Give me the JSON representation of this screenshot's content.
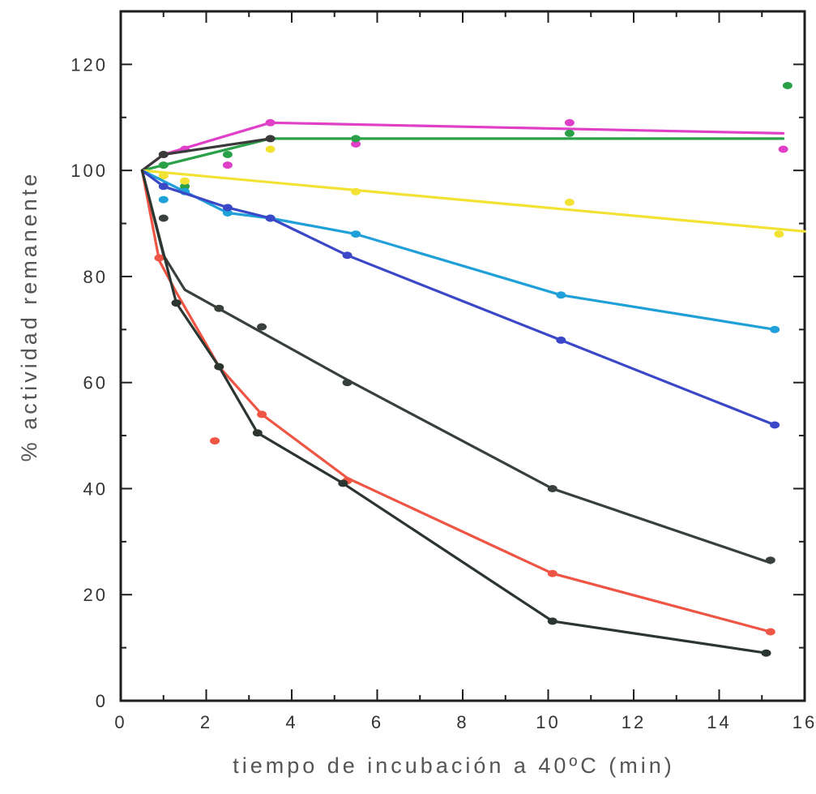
{
  "chart_data": {
    "type": "line",
    "title": "",
    "xlabel": "tiempo de incubación a 40ºC (min)",
    "ylabel": "% actividad remanente",
    "xlim": [
      0,
      16
    ],
    "ylim": [
      0,
      130
    ],
    "x_ticks": [
      0,
      2,
      4,
      6,
      8,
      10,
      12,
      14,
      16
    ],
    "y_ticks": [
      0,
      20,
      40,
      60,
      80,
      100,
      120
    ],
    "grid": false,
    "legend": "none",
    "series": [
      {
        "color": "#e040c8",
        "line": [
          [
            0.5,
            100
          ],
          [
            1,
            103
          ],
          [
            3.5,
            109
          ],
          [
            15.5,
            107
          ]
        ],
        "points": [
          [
            1,
            103
          ],
          [
            1.5,
            104
          ],
          [
            2.5,
            101
          ],
          [
            3.5,
            109
          ],
          [
            5.5,
            105
          ],
          [
            10.5,
            109
          ],
          [
            15.5,
            104
          ]
        ]
      },
      {
        "color": "#2aa048",
        "line": [
          [
            0.5,
            100
          ],
          [
            3.5,
            106
          ],
          [
            15.5,
            106
          ]
        ],
        "points": [
          [
            1,
            101
          ],
          [
            1.5,
            97
          ],
          [
            2.5,
            103
          ],
          [
            5.5,
            106
          ],
          [
            10.5,
            107
          ],
          [
            15.6,
            116
          ]
        ]
      },
      {
        "color": "#3a3a3a",
        "line": [
          [
            0.5,
            100
          ],
          [
            1,
            103
          ],
          [
            3.5,
            106
          ]
        ],
        "points": [
          [
            1,
            103
          ],
          [
            3.5,
            106
          ]
        ]
      },
      {
        "color": "#f2e234",
        "line": [
          [
            0.5,
            100
          ],
          [
            16,
            88.5
          ]
        ],
        "points": [
          [
            1,
            99
          ],
          [
            1.5,
            98
          ],
          [
            3.5,
            104
          ],
          [
            5.5,
            96
          ],
          [
            10.5,
            94
          ],
          [
            15.4,
            88
          ]
        ]
      },
      {
        "color": "#20a0d8",
        "line": [
          [
            0.5,
            100
          ],
          [
            1.5,
            96
          ],
          [
            2.5,
            92
          ],
          [
            3.5,
            91
          ],
          [
            5.5,
            88
          ],
          [
            10.3,
            76.5
          ],
          [
            15.3,
            70
          ]
        ],
        "points": [
          [
            1,
            94.5
          ],
          [
            1.5,
            96
          ],
          [
            2.5,
            92
          ],
          [
            3.5,
            91
          ],
          [
            5.5,
            88
          ],
          [
            10.3,
            76.5
          ],
          [
            15.3,
            70
          ]
        ]
      },
      {
        "color": "#3a48c8",
        "line": [
          [
            0.5,
            100
          ],
          [
            1,
            97
          ],
          [
            2.5,
            93
          ],
          [
            3.5,
            91
          ],
          [
            5.3,
            84
          ],
          [
            10.3,
            68
          ],
          [
            15.3,
            52
          ]
        ],
        "points": [
          [
            1,
            97
          ],
          [
            2.5,
            93
          ],
          [
            3.5,
            91
          ],
          [
            5.3,
            84
          ],
          [
            10.3,
            68
          ],
          [
            15.3,
            52
          ]
        ]
      },
      {
        "color": "#38403c",
        "line": [
          [
            0.5,
            100
          ],
          [
            1,
            84
          ],
          [
            1.5,
            77.5
          ],
          [
            5.3,
            60.5
          ],
          [
            10.1,
            40
          ],
          [
            15.2,
            26
          ]
        ],
        "points": [
          [
            1,
            91
          ],
          [
            1.3,
            75
          ],
          [
            2.3,
            74
          ],
          [
            3.3,
            70.5
          ],
          [
            5.3,
            60
          ],
          [
            10.1,
            40
          ],
          [
            15.2,
            26.5
          ]
        ]
      },
      {
        "color": "#ee5544",
        "line": [
          [
            0.5,
            100
          ],
          [
            0.9,
            83
          ],
          [
            1.3,
            77
          ],
          [
            2.3,
            63
          ],
          [
            3.3,
            54
          ],
          [
            5.3,
            42
          ],
          [
            10.1,
            24
          ],
          [
            15.2,
            13
          ]
        ],
        "points": [
          [
            0.9,
            83.5
          ],
          [
            2.2,
            49
          ],
          [
            3.3,
            54
          ],
          [
            5.3,
            41.5
          ],
          [
            10.1,
            24
          ],
          [
            15.2,
            13
          ]
        ]
      },
      {
        "color": "#2c3630",
        "line": [
          [
            0.5,
            100
          ],
          [
            1.3,
            75
          ],
          [
            2.3,
            63
          ],
          [
            3.2,
            50.5
          ],
          [
            5.2,
            41
          ],
          [
            10.1,
            15
          ],
          [
            15.1,
            9
          ]
        ],
        "points": [
          [
            1.3,
            75
          ],
          [
            2.3,
            63
          ],
          [
            3.2,
            50.5
          ],
          [
            5.2,
            41
          ],
          [
            10.1,
            15
          ],
          [
            15.1,
            9
          ]
        ]
      }
    ]
  }
}
